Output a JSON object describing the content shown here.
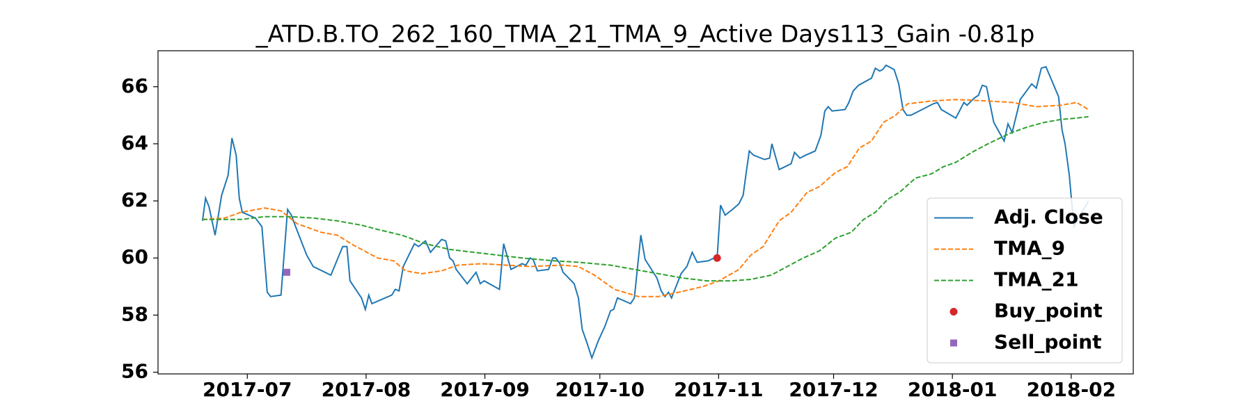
{
  "chart_data": {
    "type": "line",
    "title": "_ATD.B.TO_262_160_TMA_21_TMA_9_Active Days113_Gain  -0.81p",
    "xlim": [
      -23.3,
      231.2
    ],
    "ylim": [
      55.94,
      67.26
    ],
    "xticks": [
      {
        "value": 0,
        "label": "2017-07"
      },
      {
        "value": 31,
        "label": "2017-08"
      },
      {
        "value": 62,
        "label": "2017-09"
      },
      {
        "value": 92,
        "label": "2017-10"
      },
      {
        "value": 123,
        "label": "2017-11"
      },
      {
        "value": 153,
        "label": "2017-12"
      },
      {
        "value": 184,
        "label": "2018-01"
      },
      {
        "value": 215,
        "label": "2018-02"
      }
    ],
    "yticks": [
      56,
      58,
      60,
      62,
      64,
      66
    ],
    "grid": false,
    "legend": "lower right",
    "series": [
      {
        "name": "Adj. Close",
        "color": "#1f77b4",
        "linestyle": "solid",
        "x": [
          -11.7,
          -10.9,
          -10,
          -8.4,
          -6.7,
          -5,
          -4,
          -2.9,
          -2.1,
          -1.3,
          0.4,
          2.1,
          3.8,
          5.2,
          6.1,
          8.8,
          10.5,
          11.5,
          12.6,
          15.5,
          17.2,
          20.3,
          21.8,
          24.9,
          26,
          26.8,
          29.8,
          30.8,
          31.7,
          32.5,
          37.7,
          38.6,
          39.6,
          40.7,
          43.6,
          44.7,
          46.5,
          47.8,
          50.7,
          51.8,
          52.8,
          53.7,
          54.5,
          57.4,
          59.7,
          60.8,
          61.8,
          65.8,
          66.9,
          68.8,
          71.7,
          72.7,
          73.8,
          74.6,
          75.7,
          78.6,
          79.7,
          80.5,
          81.6,
          82.4,
          85.3,
          86.4,
          87.4,
          88.7,
          89.9,
          91.6,
          93.3,
          94.8,
          95.6,
          96.6,
          100,
          101,
          102.7,
          103.8,
          106.9,
          108,
          109,
          109.9,
          110.7,
          113.2,
          114.7,
          116.1,
          117.4,
          120.3,
          121.8,
          122.6,
          123.5,
          124.7,
          126.6,
          128.3,
          129.4,
          130.2,
          131,
          132.1,
          135,
          136.3,
          136.9,
          138.8,
          141.9,
          142.8,
          144.2,
          145.7,
          148.2,
          149.7,
          150.7,
          151.6,
          152.6,
          156,
          157,
          158.1,
          159.5,
          162.9,
          163.9,
          165,
          165.8,
          166.7,
          168.8,
          170,
          171.1,
          172.1,
          173.2,
          179,
          180.1,
          181.1,
          184.9,
          187,
          187.8,
          189.7,
          190.8,
          191.8,
          192.9,
          194.8,
          197.5,
          198.5,
          199.6,
          201.7,
          204.7,
          205.9,
          207.2,
          208.4,
          211.7,
          212.6,
          213.4,
          214.5,
          215.7,
          219.5
        ],
        "values": [
          61.3,
          62.1,
          61.8,
          60.8,
          62.2,
          62.9,
          64.2,
          63.6,
          62.1,
          61.6,
          61.5,
          61.4,
          61.1,
          58.8,
          58.65,
          58.7,
          61.7,
          61.5,
          61.1,
          60.1,
          59.7,
          59.5,
          59.4,
          60.4,
          60.4,
          59.2,
          58.6,
          58.2,
          58.7,
          58.4,
          58.7,
          58.9,
          58.85,
          59.7,
          60.5,
          60.4,
          60.6,
          60.2,
          60.65,
          60.6,
          60.0,
          59.9,
          59.6,
          59.1,
          59.5,
          59.1,
          59.2,
          58.9,
          60.5,
          59.6,
          59.8,
          59.75,
          60.0,
          59.95,
          59.55,
          59.6,
          60.0,
          60.0,
          59.8,
          59.5,
          59.1,
          58.6,
          57.5,
          57.0,
          56.5,
          57.1,
          57.6,
          58.15,
          58.2,
          58.6,
          58.4,
          58.6,
          60.8,
          59.95,
          59.3,
          58.85,
          58.65,
          58.8,
          58.6,
          59.45,
          59.7,
          60.2,
          59.85,
          59.9,
          60.0,
          60.0,
          61.85,
          61.5,
          61.7,
          61.9,
          62.2,
          63.0,
          63.75,
          63.6,
          63.45,
          63.5,
          64.0,
          63.1,
          63.3,
          63.7,
          63.5,
          63.6,
          63.75,
          64.3,
          65.15,
          65.3,
          65.15,
          65.2,
          65.45,
          65.85,
          66.05,
          66.3,
          66.65,
          66.55,
          66.6,
          66.75,
          66.6,
          66.1,
          65.2,
          65.0,
          65.0,
          65.4,
          65.45,
          65.2,
          64.9,
          65.45,
          65.35,
          65.6,
          65.7,
          66.05,
          66.0,
          64.75,
          64.1,
          64.7,
          64.4,
          65.55,
          66.1,
          65.95,
          66.65,
          66.7,
          65.65,
          64.5,
          64.0,
          62.9,
          61.1,
          62.0
        ]
      },
      {
        "name": "TMA_9",
        "color": "#ff7f0e",
        "linestyle": "dashed",
        "x": [
          -11.7,
          -5.9,
          -1.7,
          2.5,
          4.6,
          8.8,
          13.0,
          19.3,
          23.5,
          27.7,
          34.0,
          38.2,
          41.3,
          45.5,
          50.7,
          54.9,
          61.2,
          67.5,
          73.8,
          82.2,
          86.4,
          90.6,
          95.8,
          102.1,
          107.3,
          112.6,
          118.9,
          123.1,
          128.3,
          131.4,
          134.6,
          138.8,
          141.9,
          146.1,
          149.3,
          153.5,
          156.6,
          159.7,
          162.9,
          166.0,
          169.2,
          172.3,
          178.6,
          184.9,
          193.3,
          199.6,
          205.9,
          212.2,
          216.4,
          219.5
        ],
        "values": [
          61.35,
          61.4,
          61.6,
          61.7,
          61.75,
          61.65,
          61.2,
          60.9,
          60.8,
          60.45,
          60.0,
          59.9,
          59.55,
          59.45,
          59.55,
          59.75,
          59.8,
          59.75,
          59.7,
          59.75,
          59.7,
          59.4,
          58.9,
          58.65,
          58.65,
          58.8,
          59.0,
          59.2,
          59.6,
          60.1,
          60.4,
          61.3,
          61.6,
          62.3,
          62.5,
          63.0,
          63.2,
          63.85,
          64.1,
          64.75,
          65.0,
          65.4,
          65.5,
          65.55,
          65.5,
          65.45,
          65.3,
          65.35,
          65.45,
          65.2
        ]
      },
      {
        "name": "TMA_21",
        "color": "#2ca02c",
        "linestyle": "dashed",
        "x": [
          -11.7,
          -1.7,
          4.6,
          10.9,
          17.2,
          23.5,
          29.8,
          34.0,
          40.3,
          46.5,
          52.8,
          59.1,
          65.4,
          71.7,
          80.1,
          86.4,
          94.8,
          101.0,
          107.3,
          113.6,
          119.9,
          126.2,
          131.4,
          136.7,
          140.9,
          145.1,
          149.3,
          153.5,
          157.6,
          160.8,
          163.9,
          167.1,
          170.2,
          174.4,
          178.6,
          181.7,
          184.9,
          189.1,
          193.3,
          196.4,
          199.6,
          203.8,
          208.0,
          212.2,
          216.4,
          219.5
        ],
        "values": [
          61.35,
          61.35,
          61.45,
          61.45,
          61.4,
          61.3,
          61.15,
          61.0,
          60.8,
          60.5,
          60.3,
          60.2,
          60.1,
          60.0,
          59.9,
          59.85,
          59.75,
          59.6,
          59.45,
          59.3,
          59.2,
          59.2,
          59.25,
          59.4,
          59.7,
          60.0,
          60.25,
          60.7,
          60.9,
          61.35,
          61.6,
          62.05,
          62.3,
          62.8,
          62.95,
          63.2,
          63.35,
          63.7,
          64.0,
          64.2,
          64.4,
          64.6,
          64.75,
          64.85,
          64.9,
          64.95
        ]
      },
      {
        "name": "Buy_point",
        "color": "#d62728",
        "linestyle": "none",
        "marker": "circle",
        "x": [
          122.6
        ],
        "values": [
          60.0
        ]
      },
      {
        "name": "Sell_point",
        "color": "#9467bd",
        "linestyle": "none",
        "marker": "square",
        "x": [
          10.3
        ],
        "values": [
          59.5
        ]
      }
    ]
  }
}
